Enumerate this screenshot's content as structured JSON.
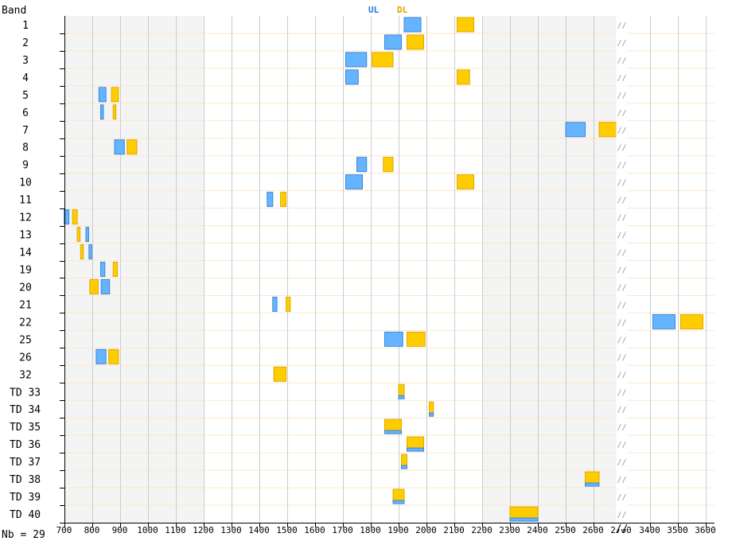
{
  "chart_data": {
    "type": "bar",
    "ylabel": "Band",
    "legend": {
      "position": "top-center",
      "items": [
        {
          "name": "UL",
          "color": "#1a7ad6"
        },
        {
          "name": "DL",
          "color": "#e0a000"
        }
      ]
    },
    "colors": {
      "ul_fill": "#66b3ff",
      "ul_stroke": "#3a87d6",
      "dl_fill": "#ffcc00",
      "dl_stroke": "#e0a800",
      "shade": "#f4f4f4",
      "grid": "#cccccc",
      "row_line": "#ffe6c8"
    },
    "x_ticks": [
      700,
      800,
      900,
      1000,
      1100,
      1200,
      1300,
      1400,
      1500,
      1600,
      1700,
      1800,
      1900,
      2000,
      2100,
      2200,
      2300,
      2400,
      2500,
      2600,
      2700,
      3400,
      3500,
      3600
    ],
    "x_tick_labels": [
      "700",
      "800",
      "900",
      "1000",
      "1100",
      "1200",
      "1300",
      "1400",
      "1500",
      "1600",
      "1700",
      "1800",
      "1900",
      "2000",
      "2100",
      "2200",
      "2300",
      "2400",
      "2500",
      "2600",
      "2700",
      "3400",
      "3500",
      "3600"
    ],
    "axis_break": "//",
    "shaded_ranges": [
      [
        700,
        1200
      ],
      [
        2200,
        2700
      ]
    ],
    "footer": "Nb = 29",
    "bands": [
      {
        "label": "1",
        "ul": [
          1920,
          1980
        ],
        "dl": [
          2110,
          2170
        ]
      },
      {
        "label": "2",
        "ul": [
          1850,
          1910
        ],
        "dl": [
          1930,
          1990
        ]
      },
      {
        "label": "3",
        "ul": [
          1710,
          1785
        ],
        "dl": [
          1805,
          1880
        ]
      },
      {
        "label": "4",
        "ul": [
          1710,
          1755
        ],
        "dl": [
          2110,
          2155
        ]
      },
      {
        "label": "5",
        "ul": [
          824,
          849
        ],
        "dl": [
          869,
          894
        ]
      },
      {
        "label": "6",
        "ul": [
          830,
          840
        ],
        "dl": [
          875,
          885
        ]
      },
      {
        "label": "7",
        "ul": [
          2500,
          2570
        ],
        "dl": [
          2620,
          2690
        ]
      },
      {
        "label": "8",
        "ul": [
          880,
          915
        ],
        "dl": [
          925,
          960
        ]
      },
      {
        "label": "9",
        "ul": [
          1750,
          1785
        ],
        "dl": [
          1845,
          1880
        ]
      },
      {
        "label": "10",
        "ul": [
          1710,
          1770
        ],
        "dl": [
          2110,
          2170
        ]
      },
      {
        "label": "11",
        "ul": [
          1428,
          1448
        ],
        "dl": [
          1476,
          1496
        ]
      },
      {
        "label": "12",
        "ul": [
          699,
          716
        ],
        "dl": [
          729,
          746
        ]
      },
      {
        "label": "13",
        "ul": [
          777,
          787
        ],
        "dl": [
          746,
          756
        ]
      },
      {
        "label": "14",
        "ul": [
          788,
          798
        ],
        "dl": [
          758,
          768
        ]
      },
      {
        "label": "19",
        "ul": [
          830,
          845
        ],
        "dl": [
          875,
          890
        ]
      },
      {
        "label": "20",
        "ul": [
          832,
          862
        ],
        "dl": [
          791,
          821
        ]
      },
      {
        "label": "21",
        "ul": [
          1448,
          1463
        ],
        "dl": [
          1496,
          1511
        ]
      },
      {
        "label": "22",
        "ul": [
          3410,
          3490
        ],
        "dl": [
          3510,
          3590
        ]
      },
      {
        "label": "25",
        "ul": [
          1850,
          1915
        ],
        "dl": [
          1930,
          1995
        ]
      },
      {
        "label": "26",
        "ul": [
          814,
          849
        ],
        "dl": [
          859,
          894
        ]
      },
      {
        "label": "32",
        "ul": null,
        "dl": [
          1452,
          1496
        ]
      },
      {
        "label": "TD 33",
        "tdd": [
          1900,
          1920
        ]
      },
      {
        "label": "TD 34",
        "tdd": [
          2010,
          2025
        ]
      },
      {
        "label": "TD 35",
        "tdd": [
          1850,
          1910
        ]
      },
      {
        "label": "TD 36",
        "tdd": [
          1930,
          1990
        ]
      },
      {
        "label": "TD 37",
        "tdd": [
          1910,
          1930
        ]
      },
      {
        "label": "TD 38",
        "tdd": [
          2570,
          2620
        ]
      },
      {
        "label": "TD 39",
        "tdd": [
          1880,
          1920
        ]
      },
      {
        "label": "TD 40",
        "tdd": [
          2300,
          2400
        ]
      }
    ]
  }
}
